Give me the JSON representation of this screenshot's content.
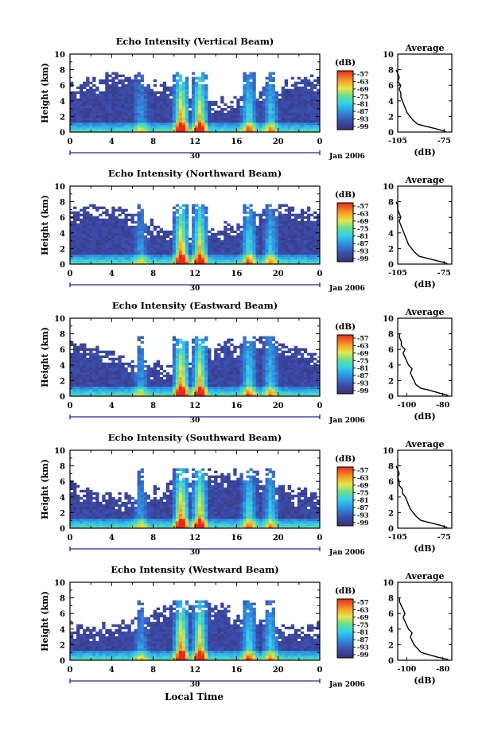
{
  "figure": {
    "xlabel": "Local Time",
    "date_label": "Jan 2006",
    "day_label": "30",
    "ylabel": "Height (km)",
    "units_label": "(dB)",
    "avg_title": "Average",
    "avg_xlabel": "(dB)"
  },
  "chart_data": [
    {
      "type": "heatmap",
      "title": "Echo Intensity (Vertical Beam)",
      "xlabel": "Local Time",
      "ylabel": "Height (km)",
      "x_ticks": [
        "0",
        "4",
        "8",
        "12",
        "16",
        "20",
        "0"
      ],
      "x_range_hours": [
        0,
        24
      ],
      "y_ticks": [
        "0",
        "2",
        "4",
        "6",
        "8",
        "10"
      ],
      "y_range_km": [
        0,
        10
      ],
      "colorbar_label": "(dB)",
      "colorbar_ticks": [
        "-57",
        "-63",
        "-69",
        "-75",
        "-81",
        "-87",
        "-93",
        "-99"
      ],
      "avg_xticks": [
        "-105",
        "-75"
      ],
      "avg_xrange": [
        -105,
        -70
      ],
      "avg_profile": {
        "height_km": [
          0.1,
          0.4,
          0.8,
          1.0,
          1.5,
          2.0,
          2.5,
          3.0,
          3.5,
          4.0,
          4.5,
          5.0,
          5.5,
          6.0,
          6.5,
          7.0,
          7.5,
          8.0
        ],
        "db": [
          -74,
          -80,
          -88,
          -92,
          -95,
          -97,
          -99,
          -100,
          -101,
          -102,
          -103,
          -103,
          -104,
          -103,
          -105,
          -104,
          -105,
          -106
        ]
      }
    },
    {
      "type": "heatmap",
      "title": "Echo Intensity (Northward Beam)",
      "xlabel": "Local Time",
      "ylabel": "Height (km)",
      "x_ticks": [
        "0",
        "4",
        "8",
        "12",
        "16",
        "20",
        "0"
      ],
      "x_range_hours": [
        0,
        24
      ],
      "y_ticks": [
        "0",
        "2",
        "4",
        "6",
        "8",
        "10"
      ],
      "y_range_km": [
        0,
        10
      ],
      "colorbar_label": "(dB)",
      "colorbar_ticks": [
        "-57",
        "-63",
        "-69",
        "-75",
        "-81",
        "-87",
        "-93",
        "-99"
      ],
      "avg_xticks": [
        "-105",
        "-75"
      ],
      "avg_xrange": [
        -105,
        -70
      ],
      "avg_profile": {
        "height_km": [
          0.1,
          0.4,
          0.8,
          1.0,
          1.5,
          2.0,
          2.5,
          3.0,
          3.5,
          4.0,
          4.5,
          5.0,
          5.5,
          6.0,
          6.5,
          7.0,
          7.5,
          8.0
        ],
        "db": [
          -73,
          -79,
          -87,
          -91,
          -94,
          -96,
          -98,
          -99,
          -100,
          -101,
          -102,
          -103,
          -104,
          -103,
          -104,
          -105,
          -105,
          -106
        ]
      }
    },
    {
      "type": "heatmap",
      "title": "Echo Intensity (Eastward Beam)",
      "xlabel": "Local Time",
      "ylabel": "Height (km)",
      "x_ticks": [
        "0",
        "4",
        "8",
        "12",
        "16",
        "20",
        "0"
      ],
      "x_range_hours": [
        0,
        24
      ],
      "y_ticks": [
        "0",
        "2",
        "4",
        "6",
        "8",
        "10"
      ],
      "y_range_km": [
        0,
        10
      ],
      "colorbar_label": "(dB)",
      "colorbar_ticks": [
        "-57",
        "-63",
        "-69",
        "-75",
        "-81",
        "-87",
        "-93",
        "-99"
      ],
      "avg_xticks": [
        "-100",
        "-80"
      ],
      "avg_xrange": [
        -105,
        -75
      ],
      "avg_profile": {
        "height_km": [
          0.1,
          0.4,
          0.8,
          1.0,
          1.5,
          2.0,
          2.5,
          3.0,
          3.5,
          4.0,
          4.5,
          5.0,
          5.5,
          6.0,
          6.5,
          7.0,
          7.5,
          8.0
        ],
        "db": [
          -77,
          -82,
          -88,
          -92,
          -95,
          -96,
          -97,
          -98,
          -97,
          -99,
          -100,
          -101,
          -102,
          -101,
          -103,
          -103,
          -104,
          -104
        ]
      }
    },
    {
      "type": "heatmap",
      "title": "Echo Intensity (Southward Beam)",
      "xlabel": "Local Time",
      "ylabel": "Height (km)",
      "x_ticks": [
        "0",
        "4",
        "8",
        "12",
        "16",
        "20",
        "0"
      ],
      "x_range_hours": [
        0,
        24
      ],
      "y_ticks": [
        "0",
        "2",
        "4",
        "6",
        "8",
        "10"
      ],
      "y_range_km": [
        0,
        10
      ],
      "colorbar_label": "(dB)",
      "colorbar_ticks": [
        "-57",
        "-63",
        "-69",
        "-75",
        "-81",
        "-87",
        "-93",
        "-99"
      ],
      "avg_xticks": [
        "-105",
        "-75"
      ],
      "avg_xrange": [
        -105,
        -70
      ],
      "avg_profile": {
        "height_km": [
          0.1,
          0.4,
          0.8,
          1.0,
          1.5,
          2.0,
          2.5,
          3.0,
          3.5,
          4.0,
          4.5,
          5.0,
          5.5,
          6.0,
          6.5,
          7.0,
          7.5,
          8.0
        ],
        "db": [
          -73,
          -78,
          -86,
          -90,
          -93,
          -95,
          -97,
          -98,
          -99,
          -100,
          -102,
          -102,
          -104,
          -104,
          -105,
          -104,
          -105,
          -106
        ]
      }
    },
    {
      "type": "heatmap",
      "title": "Echo Intensity (Westward Beam)",
      "xlabel": "Local Time",
      "ylabel": "Height (km)",
      "x_ticks": [
        "0",
        "4",
        "8",
        "12",
        "16",
        "20",
        "0"
      ],
      "x_range_hours": [
        0,
        24
      ],
      "y_ticks": [
        "0",
        "2",
        "4",
        "6",
        "8",
        "10"
      ],
      "y_range_km": [
        0,
        10
      ],
      "colorbar_label": "(dB)",
      "colorbar_ticks": [
        "-57",
        "-63",
        "-69",
        "-75",
        "-81",
        "-87",
        "-93",
        "-99"
      ],
      "avg_xticks": [
        "-100",
        "-80"
      ],
      "avg_xrange": [
        -105,
        -75
      ],
      "avg_profile": {
        "height_km": [
          0.1,
          0.4,
          0.8,
          1.0,
          1.5,
          2.0,
          2.5,
          3.0,
          3.5,
          4.0,
          4.5,
          5.0,
          5.5,
          6.0,
          6.5,
          7.0,
          7.5,
          8.0
        ],
        "db": [
          -77,
          -83,
          -89,
          -92,
          -94,
          -96,
          -97,
          -98,
          -97,
          -99,
          -100,
          -101,
          -102,
          -101,
          -102,
          -103,
          -104,
          -104
        ]
      }
    }
  ]
}
